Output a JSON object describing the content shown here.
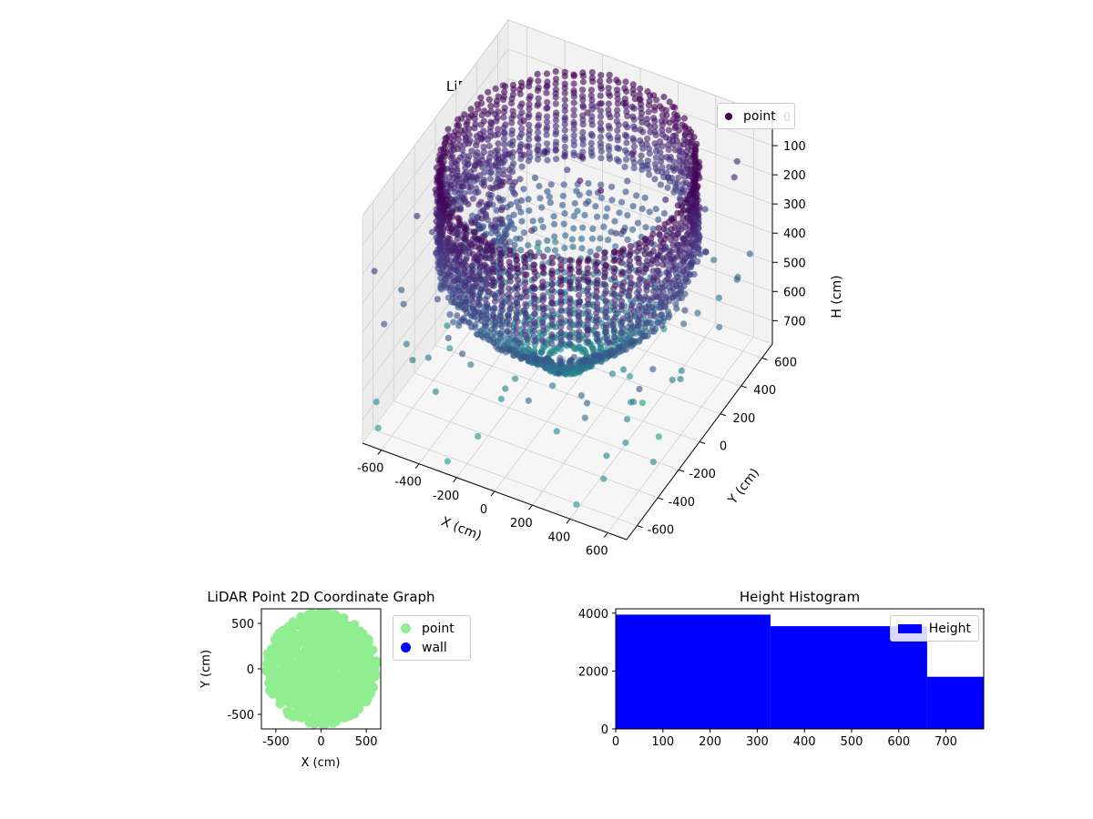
{
  "chart_data": [
    {
      "type": "scatter",
      "projection": "3d",
      "title": "LiDAR Point 3D Coordinate Graph",
      "xlabel": "X (cm)",
      "ylabel": "Y (cm)",
      "zlabel": "H (cm)",
      "x_ticks": [
        "-600",
        "-400",
        "-200",
        "0",
        "200",
        "400",
        "600"
      ],
      "y_ticks": [
        "-600",
        "-400",
        "-200",
        "0",
        "200",
        "400",
        "600"
      ],
      "z_ticks": [
        "0",
        "100",
        "200",
        "300",
        "400",
        "500",
        "600",
        "700"
      ],
      "xlim": [
        -700,
        700
      ],
      "ylim": [
        -700,
        700
      ],
      "zlim": [
        0,
        780
      ],
      "z_inverted": true,
      "grid": true,
      "legend": {
        "position": "top-right",
        "entries": [
          "point"
        ]
      },
      "series": [
        {
          "name": "point",
          "color": "#440154",
          "colormap": "viridis",
          "components": [
            {
              "shape": "cylindrical wall",
              "center": [
                0,
                0
              ],
              "radius": 600,
              "h_range": [
                0,
                300
              ],
              "approx_count": 2500
            },
            {
              "shape": "radial floor fan",
              "radius_range": [
                80,
                600
              ],
              "h_range": [
                300,
                720
              ],
              "approx_count": 2200
            },
            {
              "shape": "scattered outliers",
              "xy_range": [
                -700,
                700
              ],
              "h_range": [
                0,
                780
              ],
              "approx_count": 160
            }
          ]
        }
      ]
    },
    {
      "type": "scatter",
      "title": "LiDAR Point 2D Coordinate Graph",
      "xlabel": "X (cm)",
      "ylabel": "Y (cm)",
      "x_ticks": [
        "-500",
        "0",
        "500"
      ],
      "y_ticks": [
        "-500",
        "0",
        "500"
      ],
      "xlim": [
        -660,
        660
      ],
      "ylim": [
        -660,
        660
      ],
      "legend": {
        "position": "outside right",
        "entries": [
          "point",
          "wall"
        ]
      },
      "series": [
        {
          "name": "point",
          "color": "#90ee90",
          "region": "dense points filling |x|,|y| <= 600 disc"
        },
        {
          "name": "wall",
          "color": "#0000ff",
          "values": []
        }
      ]
    },
    {
      "type": "bar",
      "subtype": "histogram",
      "title": "Height Histogram",
      "x_ticks": [
        "0",
        "100",
        "200",
        "300",
        "400",
        "500",
        "600",
        "700"
      ],
      "y_ticks": [
        "0",
        "2000",
        "4000"
      ],
      "xlim": [
        0,
        780
      ],
      "ylim": [
        0,
        4150
      ],
      "legend": {
        "position": "top-right",
        "entries": [
          "Height"
        ]
      },
      "series": [
        {
          "name": "Height",
          "color": "#0000ff",
          "bins": [
            {
              "x0": 0,
              "x1": 328,
              "count": 3950
            },
            {
              "x0": 328,
              "x1": 660,
              "count": 3550
            },
            {
              "x0": 660,
              "x1": 780,
              "count": 1800
            }
          ]
        }
      ]
    }
  ]
}
